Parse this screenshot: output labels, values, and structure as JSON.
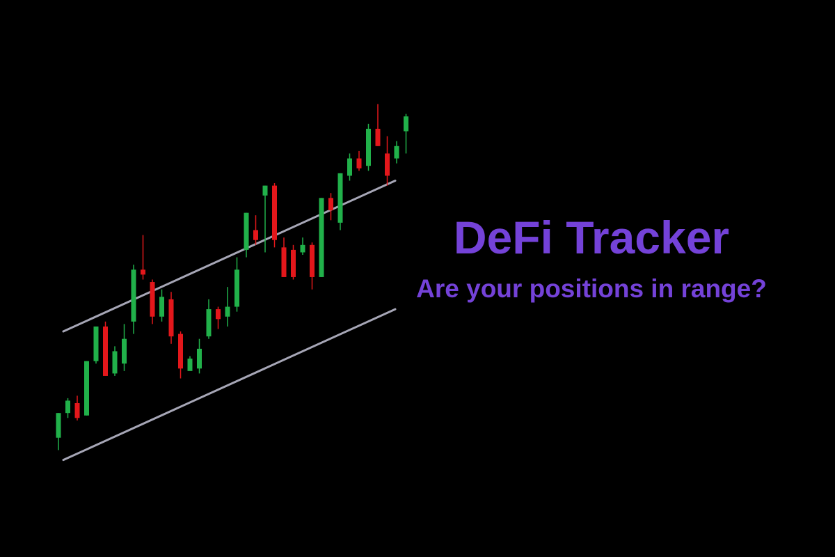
{
  "brand": {
    "title": "DeFi Tracker",
    "subtitle": "Are your positions in range?"
  },
  "colors": {
    "background": "#000000",
    "accent": "#7442d8",
    "up_candle": "#21b14a",
    "down_candle": "#e3171b",
    "channel_line": "#a6a6b6"
  },
  "chart_data": {
    "type": "candlestick",
    "title": "",
    "xlabel": "",
    "ylabel": "",
    "grid": false,
    "channel": {
      "upper": [
        [
          0,
          49
        ],
        [
          36,
          110
        ]
      ],
      "lower": [
        [
          0,
          -3
        ],
        [
          36,
          58
        ]
      ]
    },
    "candles": [
      {
        "o": 6,
        "h": 16,
        "l": 1,
        "c": 16
      },
      {
        "o": 16,
        "h": 22,
        "l": 14,
        "c": 21
      },
      {
        "o": 20,
        "h": 23,
        "l": 13,
        "c": 14
      },
      {
        "o": 15,
        "h": 37,
        "l": 15,
        "c": 37
      },
      {
        "o": 37,
        "h": 51,
        "l": 36,
        "c": 51
      },
      {
        "o": 51,
        "h": 53,
        "l": 31,
        "c": 31
      },
      {
        "o": 32,
        "h": 43,
        "l": 31,
        "c": 41
      },
      {
        "o": 36,
        "h": 52,
        "l": 33,
        "c": 46
      },
      {
        "o": 53,
        "h": 76,
        "l": 48,
        "c": 74
      },
      {
        "o": 74,
        "h": 88,
        "l": 70,
        "c": 72
      },
      {
        "o": 69,
        "h": 70,
        "l": 52,
        "c": 55
      },
      {
        "o": 55,
        "h": 66,
        "l": 53,
        "c": 63
      },
      {
        "o": 62,
        "h": 65,
        "l": 44,
        "c": 47
      },
      {
        "o": 48,
        "h": 49,
        "l": 30,
        "c": 34
      },
      {
        "o": 33,
        "h": 39,
        "l": 34,
        "c": 38
      },
      {
        "o": 34,
        "h": 46,
        "l": 32,
        "c": 42
      },
      {
        "o": 47,
        "h": 62,
        "l": 46,
        "c": 58
      },
      {
        "o": 58,
        "h": 59,
        "l": 50,
        "c": 54
      },
      {
        "o": 55,
        "h": 67,
        "l": 51,
        "c": 59
      },
      {
        "o": 59,
        "h": 79,
        "l": 57,
        "c": 74
      },
      {
        "o": 82,
        "h": 97,
        "l": 79,
        "c": 97
      },
      {
        "o": 90,
        "h": 96,
        "l": 84,
        "c": 86
      },
      {
        "o": 104,
        "h": 108,
        "l": 81,
        "c": 108
      },
      {
        "o": 108,
        "h": 109,
        "l": 83,
        "c": 86
      },
      {
        "o": 83,
        "h": 87,
        "l": 71,
        "c": 71
      },
      {
        "o": 82,
        "h": 84,
        "l": 70,
        "c": 71
      },
      {
        "o": 81,
        "h": 87,
        "l": 80,
        "c": 84
      },
      {
        "o": 84,
        "h": 85,
        "l": 66,
        "c": 71
      },
      {
        "o": 71,
        "h": 103,
        "l": 71,
        "c": 103
      },
      {
        "o": 103,
        "h": 105,
        "l": 94,
        "c": 98
      },
      {
        "o": 93,
        "h": 113,
        "l": 90,
        "c": 113
      },
      {
        "o": 112,
        "h": 121,
        "l": 110,
        "c": 119
      },
      {
        "o": 119,
        "h": 122,
        "l": 114,
        "c": 115
      },
      {
        "o": 116,
        "h": 133,
        "l": 114,
        "c": 131
      },
      {
        "o": 131,
        "h": 141,
        "l": 124,
        "c": 124
      },
      {
        "o": 121,
        "h": 128,
        "l": 108,
        "c": 112
      },
      {
        "o": 119,
        "h": 126,
        "l": 117,
        "c": 124
      },
      {
        "o": 130,
        "h": 137,
        "l": 121,
        "c": 136
      }
    ]
  }
}
